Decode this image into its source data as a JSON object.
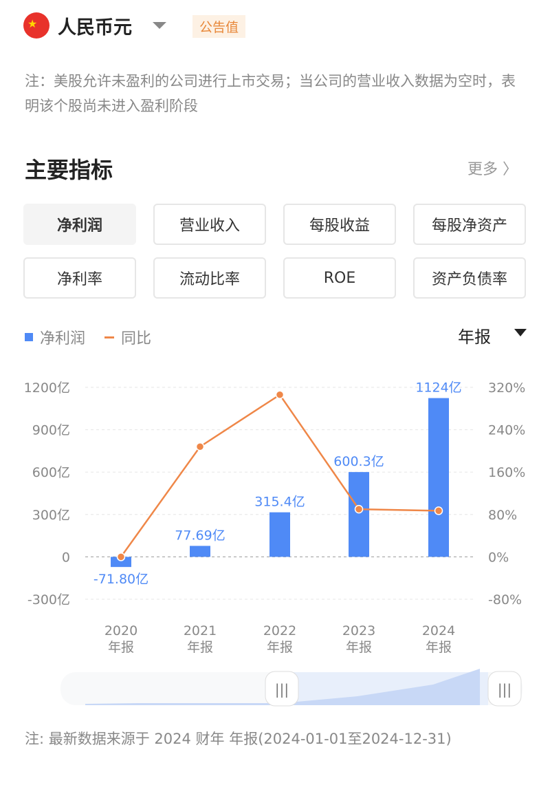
{
  "header": {
    "currency": "人民币元",
    "badge": "公告值",
    "flag_icon": "china-flag-icon"
  },
  "note": "注：美股允许未盈利的公司进行上市交易；当公司的营业收入数据为空时，表明该个股尚未进入盈利阶段",
  "section": {
    "title": "主要指标",
    "more": "更多 〉"
  },
  "tabs": [
    {
      "label": "净利润",
      "active": true
    },
    {
      "label": "营业收入"
    },
    {
      "label": "每股收益"
    },
    {
      "label": "每股净资产"
    },
    {
      "label": "净利率"
    },
    {
      "label": "流动比率"
    },
    {
      "label": "ROE"
    },
    {
      "label": "资产负债率"
    }
  ],
  "legend": {
    "bar": "净利润",
    "line": "同比"
  },
  "period": "年报",
  "colors": {
    "bar": "#4f8af6",
    "line": "#ef8748",
    "label": "#4f8af6"
  },
  "chart_data": {
    "type": "bar+line",
    "categories": [
      "2020\n年报",
      "2021\n年报",
      "2022\n年报",
      "2023\n年报",
      "2024\n年报"
    ],
    "years": [
      "2020",
      "2021",
      "2022",
      "2023",
      "2024"
    ],
    "period_label": "年报",
    "series": [
      {
        "name": "净利润",
        "type": "bar",
        "axis": "left",
        "values": [
          -71.8,
          77.69,
          315.4,
          600.3,
          1124
        ],
        "labels": [
          "-71.80亿",
          "77.69亿",
          "315.4亿",
          "600.3亿",
          "1124亿"
        ]
      },
      {
        "name": "同比",
        "type": "line",
        "axis": "right",
        "values": [
          0,
          208,
          306,
          90,
          87
        ]
      }
    ],
    "left_axis": {
      "ticks": [
        "1200亿",
        "900亿",
        "600亿",
        "300亿",
        "0",
        "-300亿"
      ],
      "range": [
        -300,
        1200
      ]
    },
    "right_axis": {
      "ticks": [
        "320%",
        "240%",
        "160%",
        "80%",
        "0%",
        "-80%"
      ],
      "range": [
        -80,
        320
      ]
    },
    "grid": true
  },
  "footer": "注: 最新数据来源于 2024 财年 年报(2024-01-01至2024-12-31)"
}
